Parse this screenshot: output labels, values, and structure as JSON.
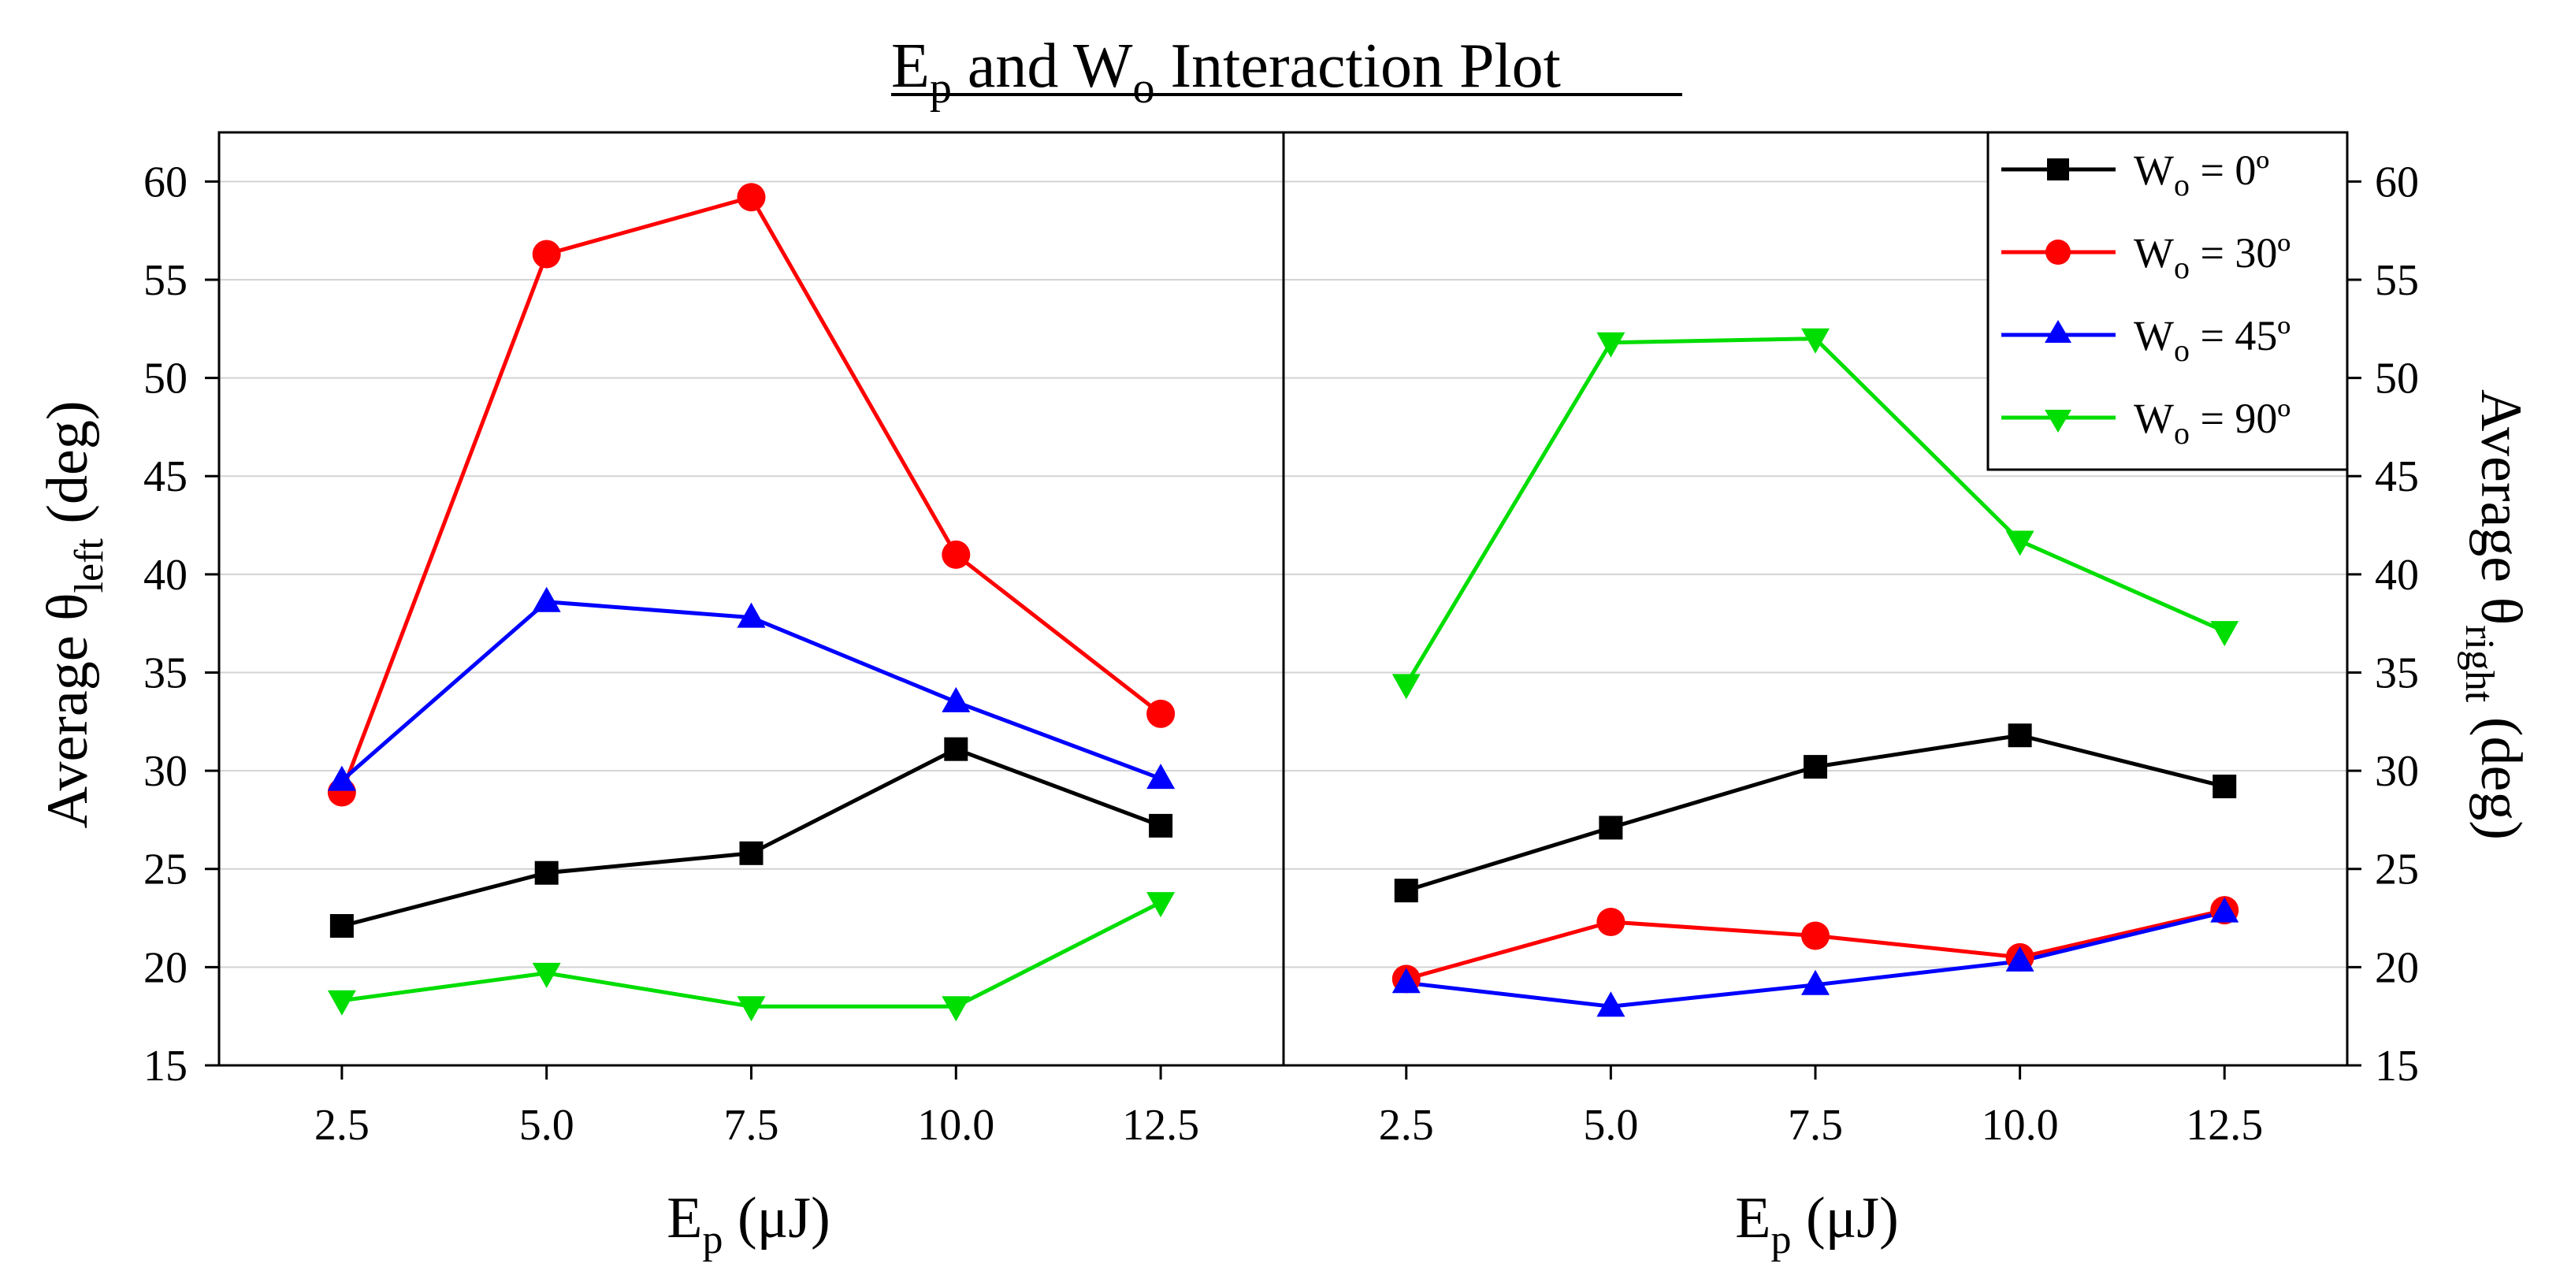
{
  "chart_data": {
    "type": "line",
    "title": {
      "main": "E",
      "sub": "p",
      "mid": " and W",
      "sub2": "o",
      "end": " Interaction Plot"
    },
    "x_ticks": [
      2.5,
      5.0,
      7.5,
      10.0,
      12.5
    ],
    "x_tick_labels": [
      "2.5",
      "5.0",
      "7.5",
      "10.0",
      "12.5"
    ],
    "xlim": [
      1,
      14
    ],
    "ylim": [
      15,
      62.5
    ],
    "y_ticks": [
      15,
      20,
      25,
      30,
      35,
      40,
      45,
      50,
      55,
      60
    ],
    "y_tick_labels": [
      "15",
      "20",
      "25",
      "30",
      "35",
      "40",
      "45",
      "50",
      "55",
      "60"
    ],
    "xlabel": {
      "main": "E",
      "sub": "p",
      "rest": " (μJ)"
    },
    "ylabel_left": {
      "main": "Average θ",
      "sub": "left",
      "rest": " (deg)"
    },
    "ylabel_right": {
      "main": "Average θ",
      "sub": "right",
      "rest": " (deg)"
    },
    "legend": {
      "position": "top-right",
      "prefix": "W",
      "sub": "o"
    },
    "series": [
      {
        "name": "W_o = 0º",
        "legend_rest": " = 0º",
        "color": "#000000",
        "marker": "square",
        "left": [
          22.1,
          24.8,
          25.8,
          31.1,
          27.2
        ],
        "right": [
          23.9,
          27.1,
          30.2,
          31.8,
          29.2
        ]
      },
      {
        "name": "W_o = 30º",
        "legend_rest": " = 30º",
        "color": "#ff0000",
        "marker": "circle",
        "left": [
          28.9,
          56.3,
          59.2,
          41.0,
          32.9
        ],
        "right": [
          19.4,
          22.3,
          21.6,
          20.5,
          22.9
        ]
      },
      {
        "name": "W_o = 45º",
        "legend_rest": " = 45º",
        "color": "#0000ff",
        "marker": "triangle-up",
        "left": [
          29.5,
          38.6,
          37.8,
          33.5,
          29.6
        ],
        "right": [
          19.2,
          18.0,
          19.1,
          20.3,
          22.8
        ]
      },
      {
        "name": "W_o = 90º",
        "legend_rest": " = 90º",
        "color": "#00dd00",
        "marker": "triangle-down",
        "left": [
          18.3,
          19.7,
          18.0,
          18.0,
          23.3
        ],
        "right": [
          34.4,
          51.8,
          52.0,
          41.7,
          37.1
        ]
      }
    ]
  }
}
